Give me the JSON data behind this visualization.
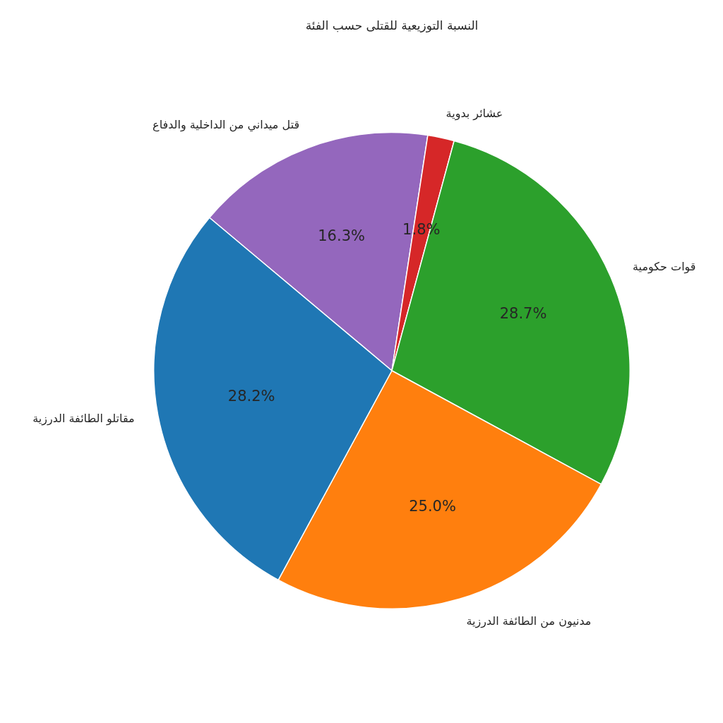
{
  "chart_data": {
    "type": "pie",
    "title": "النسبة التوزيعية للقتلى حسب الفئة",
    "categories": [
      "قتل ميداني من الداخلية والدفاع",
      "عشائر بدوية",
      "قوات حكومية",
      "مدنيون من الطائفة الدرزية",
      "مقاتلو الطائفة الدرزية"
    ],
    "values": [
      16.3,
      1.8,
      28.7,
      25.0,
      28.2
    ],
    "colors": [
      "#9467bd",
      "#d62728",
      "#2ca02c",
      "#ff7f0e",
      "#1f77b4"
    ],
    "value_labels": [
      "16.3%",
      "1.8%",
      "28.7%",
      "25.0%",
      "28.2%"
    ],
    "legend": false
  }
}
